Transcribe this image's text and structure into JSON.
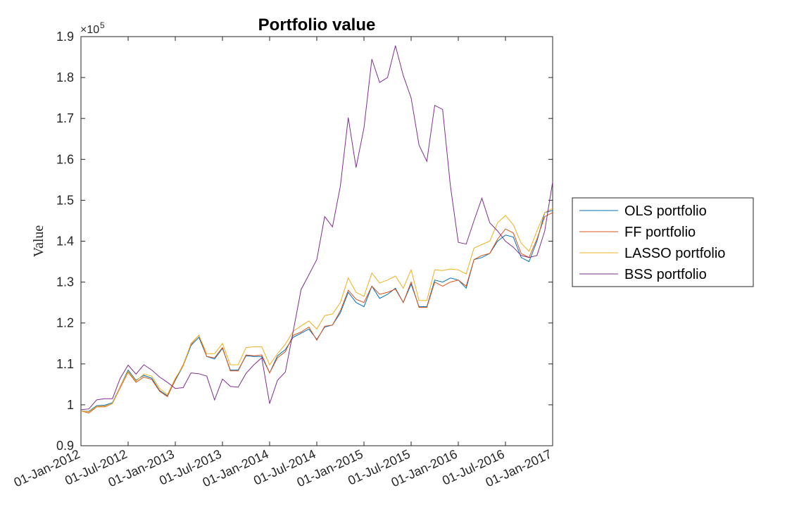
{
  "chart_data": {
    "type": "line",
    "title": "Portfolio value",
    "xlabel": "",
    "ylabel": "Value",
    "y_multiplier": "×10",
    "y_exponent": "5",
    "ylim": [
      0.9,
      1.9
    ],
    "y_ticks": [
      "0.9",
      "1",
      "1.1",
      "1.2",
      "1.3",
      "1.4",
      "1.5",
      "1.6",
      "1.7",
      "1.8",
      "1.9"
    ],
    "x_ticks": [
      "01-Jan-2012",
      "01-Jul-2012",
      "01-Jan-2013",
      "01-Jul-2013",
      "01-Jan-2014",
      "01-Jul-2014",
      "01-Jan-2015",
      "01-Jul-2015",
      "01-Jan-2016",
      "01-Jul-2016",
      "01-Jan-2017"
    ],
    "x": [
      "2012-01",
      "2012-02",
      "2012-03",
      "2012-04",
      "2012-05",
      "2012-06",
      "2012-07",
      "2012-08",
      "2012-09",
      "2012-10",
      "2012-11",
      "2012-12",
      "2013-01",
      "2013-02",
      "2013-03",
      "2013-04",
      "2013-05",
      "2013-06",
      "2013-07",
      "2013-08",
      "2013-09",
      "2013-10",
      "2013-11",
      "2013-12",
      "2014-01",
      "2014-02",
      "2014-03",
      "2014-04",
      "2014-05",
      "2014-06",
      "2014-07",
      "2014-08",
      "2014-09",
      "2014-10",
      "2014-11",
      "2014-12",
      "2015-01",
      "2015-02",
      "2015-03",
      "2015-04",
      "2015-05",
      "2015-06",
      "2015-07",
      "2015-08",
      "2015-09",
      "2015-10",
      "2015-11",
      "2015-12",
      "2016-01",
      "2016-02",
      "2016-03",
      "2016-04",
      "2016-05",
      "2016-06",
      "2016-07",
      "2016-08",
      "2016-09",
      "2016-10",
      "2016-11",
      "2016-12",
      "2017-01"
    ],
    "grid": false,
    "legend_position": "outside-right",
    "series": [
      {
        "name": "OLS portfolio",
        "color": "#0072BD",
        "values": [
          0.985,
          0.984,
          0.998,
          0.999,
          1.005,
          1.045,
          1.085,
          1.06,
          1.072,
          1.065,
          1.035,
          1.022,
          1.06,
          1.095,
          1.145,
          1.165,
          1.118,
          1.112,
          1.138,
          1.085,
          1.085,
          1.12,
          1.118,
          1.118,
          1.078,
          1.12,
          1.135,
          1.165,
          1.175,
          1.185,
          1.16,
          1.19,
          1.195,
          1.225,
          1.275,
          1.25,
          1.24,
          1.29,
          1.26,
          1.27,
          1.285,
          1.25,
          1.295,
          1.24,
          1.24,
          1.305,
          1.3,
          1.31,
          1.305,
          1.285,
          1.355,
          1.36,
          1.37,
          1.4,
          1.415,
          1.41,
          1.36,
          1.35,
          1.4,
          1.47,
          1.475
        ]
      },
      {
        "name": "FF portfolio",
        "color": "#D95319",
        "values": [
          0.985,
          0.98,
          0.995,
          0.995,
          1.003,
          1.042,
          1.08,
          1.055,
          1.068,
          1.062,
          1.033,
          1.02,
          1.062,
          1.098,
          1.148,
          1.17,
          1.118,
          1.115,
          1.14,
          1.083,
          1.083,
          1.122,
          1.12,
          1.122,
          1.078,
          1.115,
          1.13,
          1.17,
          1.178,
          1.19,
          1.158,
          1.192,
          1.195,
          1.23,
          1.28,
          1.258,
          1.25,
          1.29,
          1.27,
          1.275,
          1.283,
          1.25,
          1.3,
          1.238,
          1.238,
          1.3,
          1.29,
          1.3,
          1.305,
          1.29,
          1.355,
          1.365,
          1.37,
          1.405,
          1.43,
          1.42,
          1.37,
          1.36,
          1.405,
          1.46,
          1.47
        ]
      },
      {
        "name": "LASSO portfolio",
        "color": "#EDB120",
        "values": [
          0.985,
          0.983,
          0.996,
          0.997,
          1.003,
          1.045,
          1.082,
          1.058,
          1.075,
          1.07,
          1.04,
          1.025,
          1.065,
          1.095,
          1.15,
          1.17,
          1.125,
          1.125,
          1.15,
          1.098,
          1.098,
          1.14,
          1.142,
          1.142,
          1.098,
          1.125,
          1.148,
          1.18,
          1.193,
          1.205,
          1.185,
          1.218,
          1.222,
          1.25,
          1.31,
          1.275,
          1.265,
          1.322,
          1.298,
          1.305,
          1.315,
          1.285,
          1.33,
          1.255,
          1.255,
          1.33,
          1.328,
          1.332,
          1.33,
          1.32,
          1.383,
          1.392,
          1.4,
          1.445,
          1.463,
          1.44,
          1.395,
          1.375,
          1.425,
          1.47,
          1.48
        ]
      },
      {
        "name": "BSS portfolio",
        "color": "#7E2F8E",
        "values": [
          0.988,
          0.99,
          1.012,
          1.015,
          1.015,
          1.065,
          1.097,
          1.075,
          1.098,
          1.085,
          1.068,
          1.055,
          1.04,
          1.042,
          1.078,
          1.076,
          1.07,
          1.012,
          1.063,
          1.045,
          1.043,
          1.077,
          1.098,
          1.115,
          1.003,
          1.06,
          1.08,
          1.18,
          1.282,
          1.318,
          1.355,
          1.46,
          1.435,
          1.535,
          1.702,
          1.58,
          1.677,
          1.845,
          1.788,
          1.8,
          1.878,
          1.805,
          1.75,
          1.635,
          1.595,
          1.732,
          1.722,
          1.535,
          1.397,
          1.393,
          1.45,
          1.505,
          1.445,
          1.425,
          1.4,
          1.385,
          1.365,
          1.36,
          1.365,
          1.425,
          1.545
        ]
      }
    ]
  }
}
